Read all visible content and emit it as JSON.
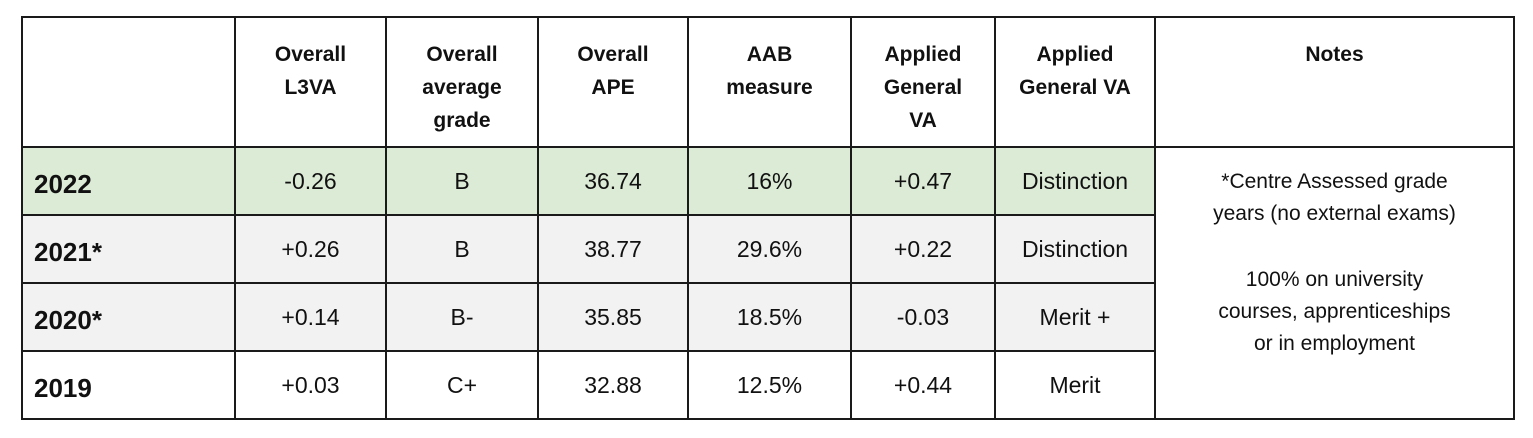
{
  "table": {
    "headers": [
      "",
      "Overall\nL3VA",
      "Overall\naverage\ngrade",
      "Overall\nAPE",
      "AAB\nmeasure",
      "Applied\nGeneral\nVA",
      "Applied\nGeneral VA",
      "Notes"
    ],
    "rows": [
      {
        "year": "2022",
        "l3va": "-0.26",
        "avg_grade": "B",
        "ape": "36.74",
        "aab": "16%",
        "ag_va": "+0.47",
        "ag_va_grade": "Distinction"
      },
      {
        "year": "2021*",
        "l3va": "+0.26",
        "avg_grade": "B",
        "ape": "38.77",
        "aab": "29.6%",
        "ag_va": "+0.22",
        "ag_va_grade": "Distinction"
      },
      {
        "year": "2020*",
        "l3va": "+0.14",
        "avg_grade": "B-",
        "ape": "35.85",
        "aab": "18.5%",
        "ag_va": "-0.03",
        "ag_va_grade": "Merit +"
      },
      {
        "year": "2019",
        "l3va": "+0.03",
        "avg_grade": "C+",
        "ape": "32.88",
        "aab": "12.5%",
        "ag_va": "+0.44",
        "ag_va_grade": "Merit"
      }
    ],
    "notes": {
      "line1": "*Centre Assessed grade",
      "line2": "years (no external exams)",
      "line3": "100% on university",
      "line4": "courses, apprenticeships",
      "line5": "or in employment"
    },
    "colors": {
      "highlight_row": "#dcebd6",
      "alt_row": "#f2f2f2",
      "border": "#1a1a1a"
    }
  }
}
